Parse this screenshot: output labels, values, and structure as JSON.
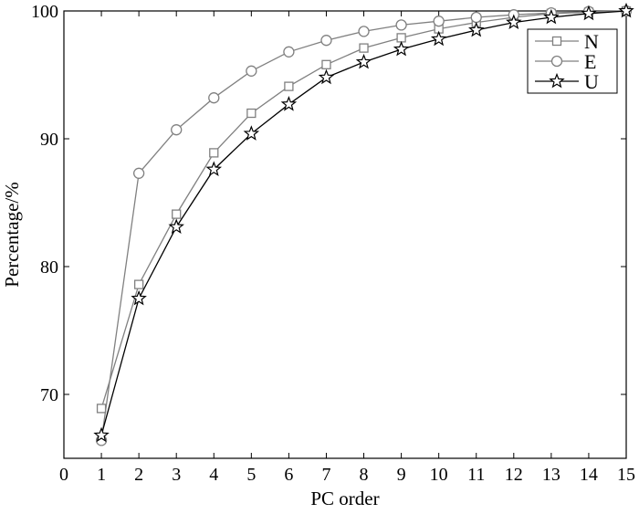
{
  "chart_data": {
    "type": "line",
    "title": "",
    "xlabel": "PC order",
    "ylabel": "Percentage/%",
    "xlim": [
      0,
      15
    ],
    "ylim": [
      65,
      100
    ],
    "x_ticks": [
      0,
      1,
      2,
      3,
      4,
      5,
      6,
      7,
      8,
      9,
      10,
      11,
      12,
      13,
      14,
      15
    ],
    "x_tick_labels": [
      "0",
      "1",
      "2",
      "3",
      "4",
      "5",
      "6",
      "7",
      "8",
      "9",
      "10",
      "11",
      "12",
      "13",
      "14",
      "15"
    ],
    "y_ticks": [
      70,
      80,
      90,
      100
    ],
    "y_tick_labels": [
      "70",
      "80",
      "90",
      "100"
    ],
    "grid": false,
    "legend_position": "top-right",
    "x": [
      1,
      2,
      3,
      4,
      5,
      6,
      7,
      8,
      9,
      10,
      11,
      12,
      13,
      14,
      15
    ],
    "series": [
      {
        "name": "N",
        "marker": "square",
        "color": "#808080",
        "values": [
          68.9,
          78.6,
          84.1,
          88.9,
          92.0,
          94.1,
          95.8,
          97.1,
          97.9,
          98.6,
          99.1,
          99.5,
          99.8,
          99.9,
          100.0
        ]
      },
      {
        "name": "E",
        "marker": "circle",
        "color": "#808080",
        "values": [
          66.4,
          87.3,
          90.7,
          93.2,
          95.3,
          96.8,
          97.7,
          98.4,
          98.9,
          99.2,
          99.5,
          99.7,
          99.85,
          99.95,
          100.0
        ]
      },
      {
        "name": "U",
        "marker": "star",
        "color": "#000000",
        "values": [
          66.8,
          77.5,
          83.1,
          87.6,
          90.4,
          92.7,
          94.8,
          96.0,
          97.0,
          97.8,
          98.5,
          99.1,
          99.5,
          99.8,
          100.0
        ]
      }
    ]
  }
}
